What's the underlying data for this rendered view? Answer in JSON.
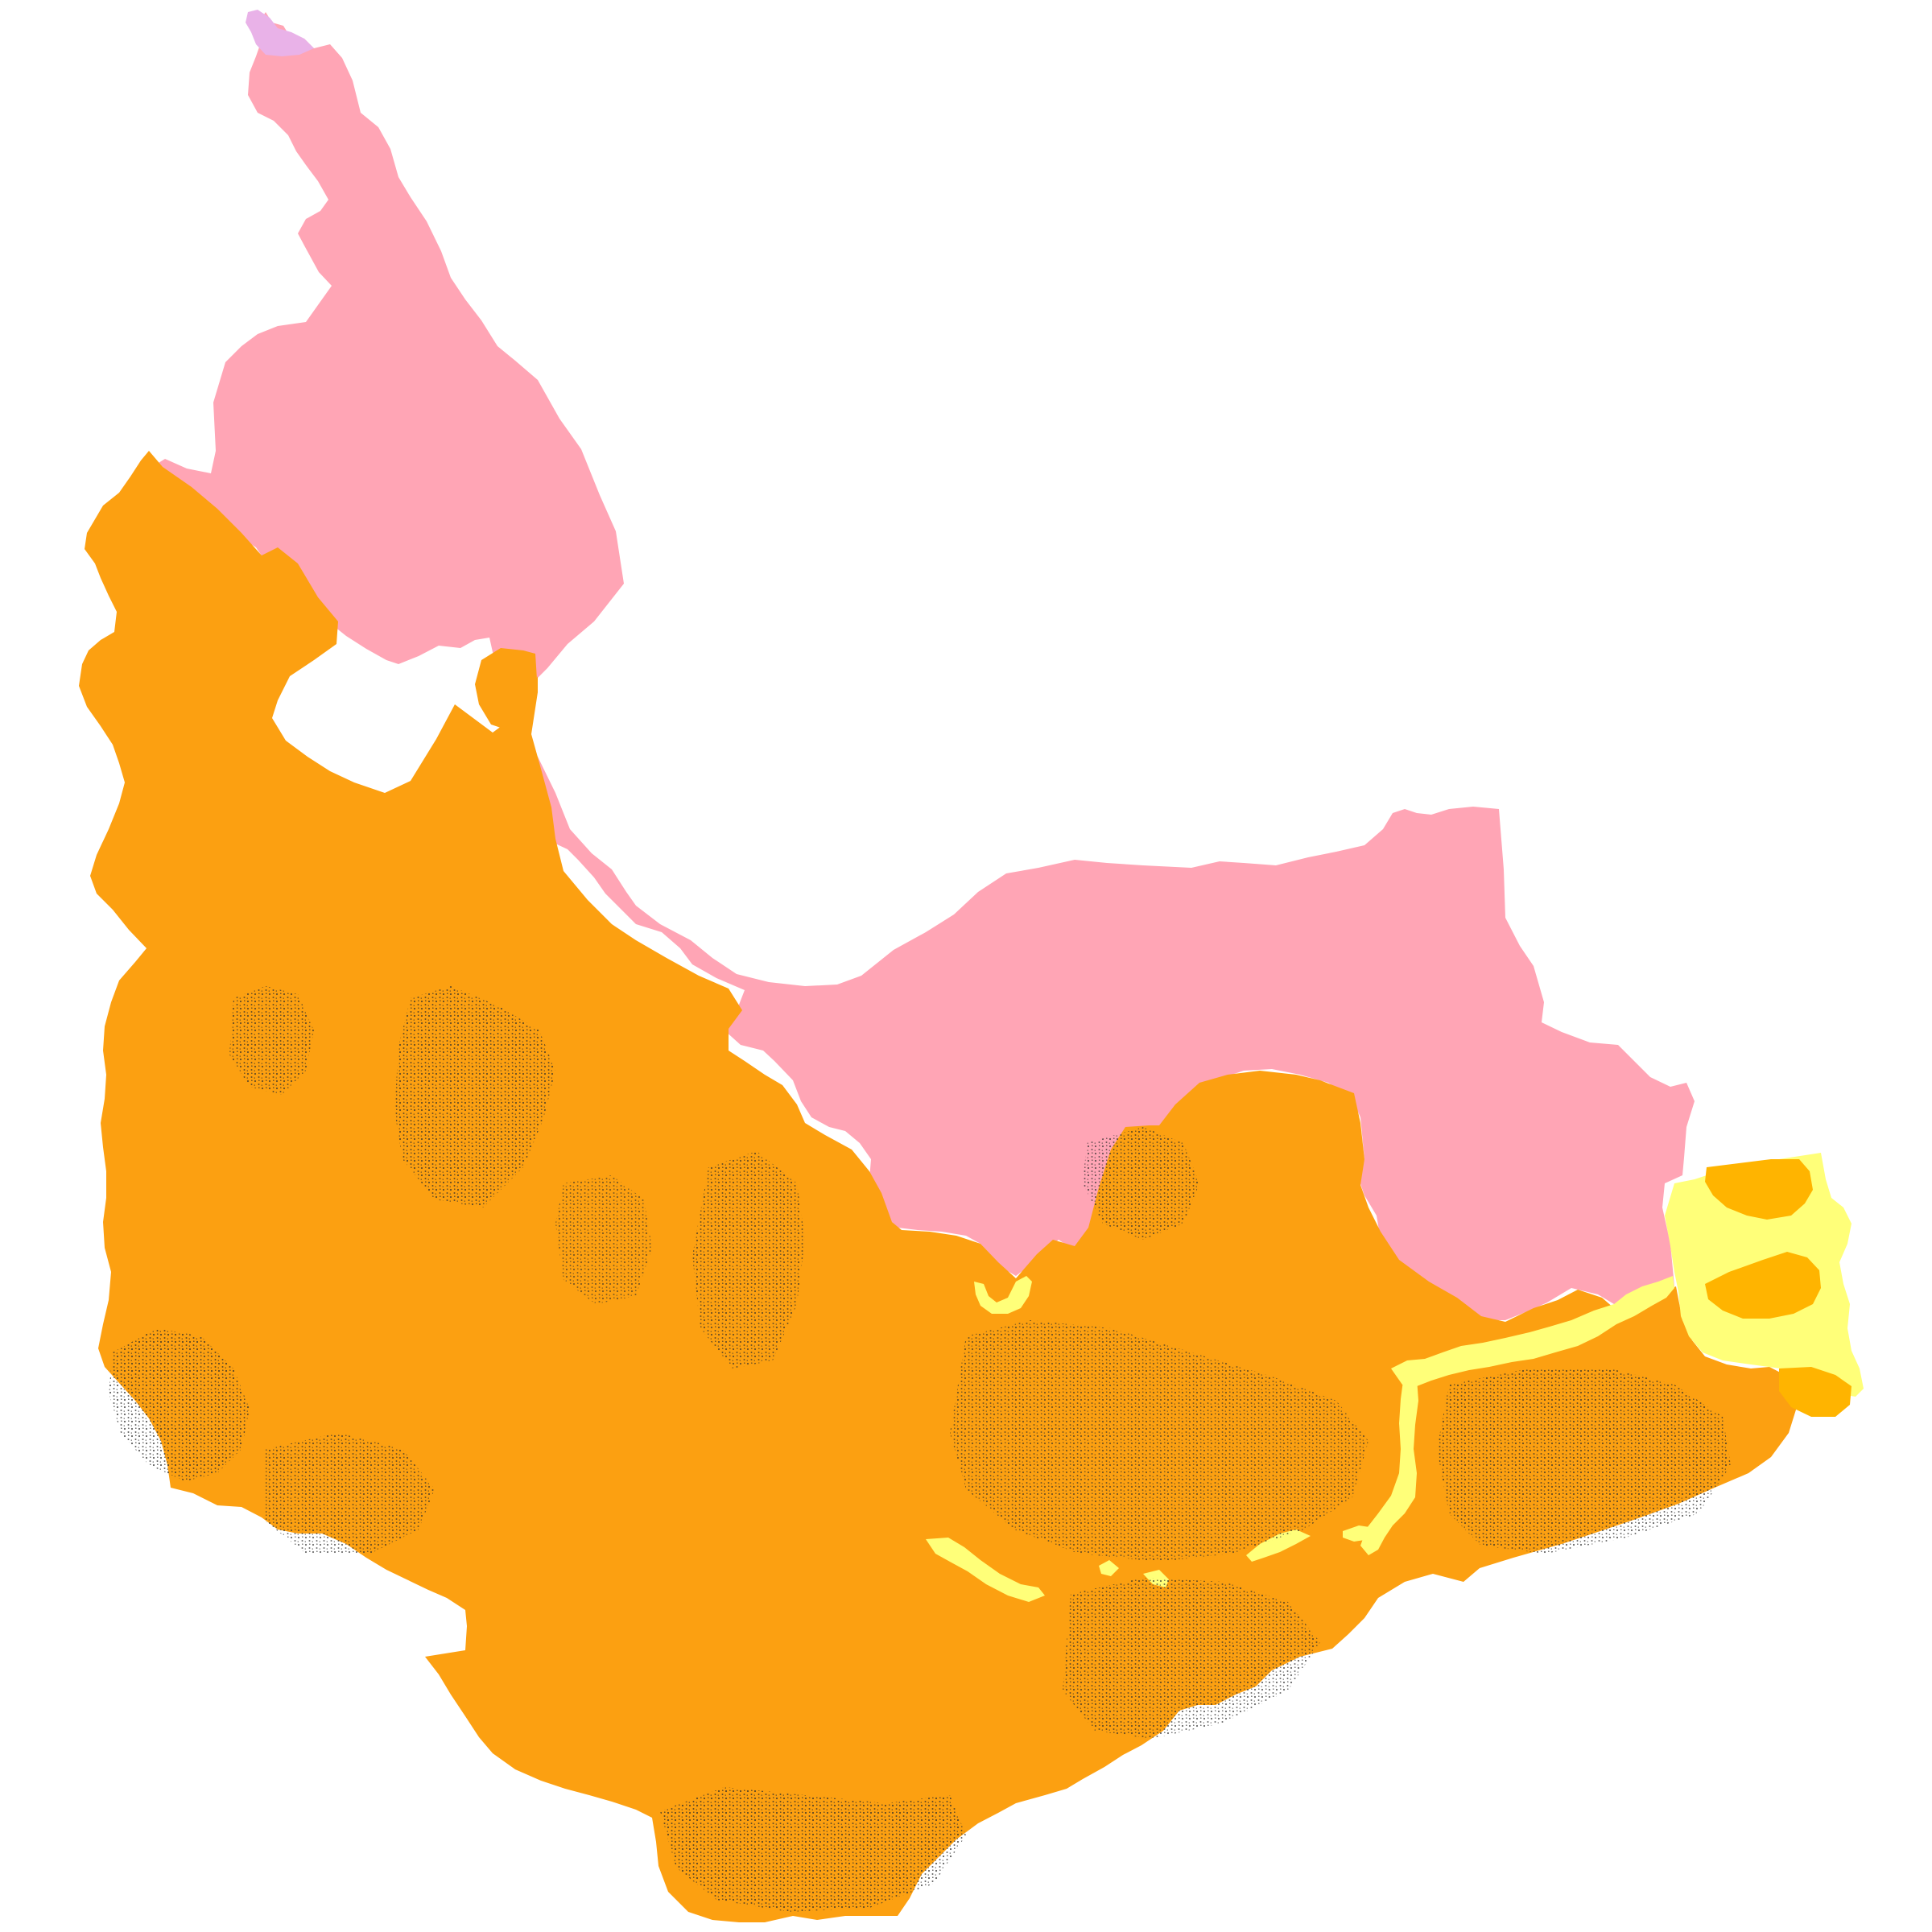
{
  "map": {
    "background_color": "#ffffff",
    "layers": [
      {
        "id": "pink-zone",
        "fill": "#ffa5b5"
      },
      {
        "id": "orange-zone",
        "fill": "#fca011"
      },
      {
        "id": "yellow-zone",
        "fill": "#ffff79"
      },
      {
        "id": "light-orange-zone",
        "fill": "#ffb400"
      },
      {
        "id": "purple-zone",
        "fill": "#e9b2e8"
      },
      {
        "id": "stipple-pattern",
        "fill": "#2b2b2b"
      }
    ]
  }
}
